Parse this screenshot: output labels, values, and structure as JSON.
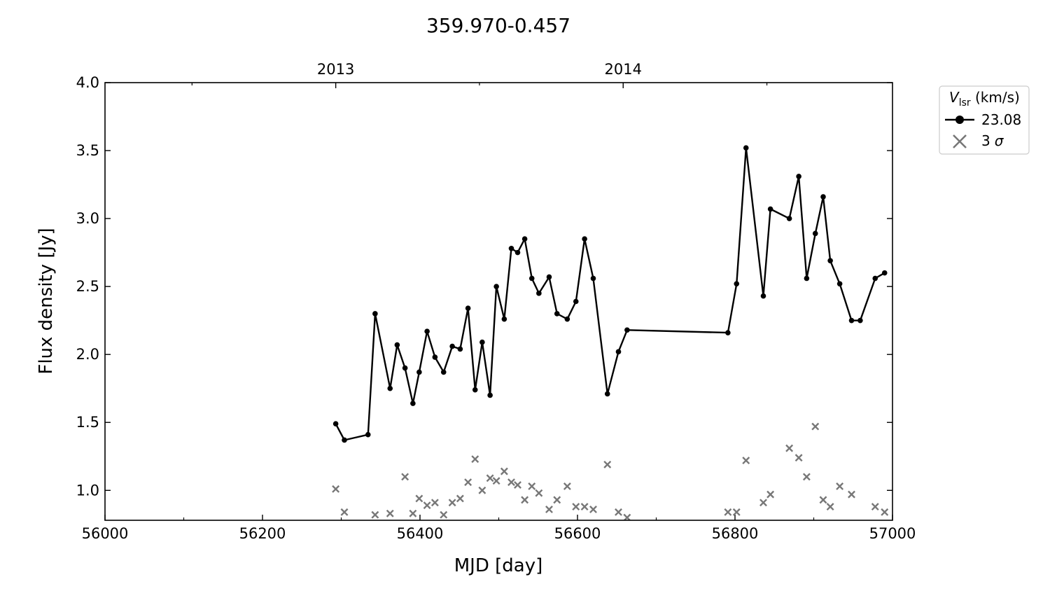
{
  "chart_data": {
    "type": "line",
    "title": "359.970-0.457",
    "xlabel": "MJD [day]",
    "ylabel": "Flux density [Jy]",
    "xlim": [
      56000,
      57000
    ],
    "ylim": [
      0.78,
      4.0
    ],
    "x_ticks": [
      56000,
      56200,
      56400,
      56600,
      56800,
      57000
    ],
    "x_tick_labels": [
      "56000",
      "56200",
      "56400",
      "56600",
      "56800",
      "57000"
    ],
    "y_ticks": [
      1.0,
      1.5,
      2.0,
      2.5,
      3.0,
      3.5,
      4.0
    ],
    "y_tick_labels": [
      "1.0",
      "1.5",
      "2.0",
      "2.5",
      "3.0",
      "3.5",
      "4.0"
    ],
    "top_axis": {
      "ticks": [
        56293,
        56658
      ],
      "labels": [
        "2013",
        "2014"
      ]
    },
    "legend": {
      "title_main": "V",
      "title_sub": "lsr",
      "title_rest": " (km/s)",
      "position": "outside-upper-right"
    },
    "series": [
      {
        "name": "23.08",
        "style": "line-marker",
        "color": "#000000",
        "x": [
          56293,
          56304,
          56334,
          56343,
          56362,
          56371,
          56381,
          56391,
          56399,
          56409,
          56419,
          56430,
          56441,
          56451,
          56461,
          56470,
          56479,
          56489,
          56497,
          56507,
          56516,
          56524,
          56533,
          56542,
          56551,
          56564,
          56574,
          56587,
          56598,
          56609,
          56620,
          56638,
          56652,
          56663,
          56791,
          56802,
          56814,
          56836,
          56845,
          56869,
          56881,
          56891,
          56902,
          56912,
          56921,
          56933,
          56948,
          56959,
          56978,
          56990
        ],
        "y": [
          1.49,
          1.37,
          1.41,
          2.3,
          1.75,
          2.07,
          1.9,
          1.64,
          1.87,
          2.17,
          1.98,
          1.87,
          2.06,
          2.04,
          2.34,
          1.74,
          2.09,
          1.7,
          2.5,
          2.26,
          2.78,
          2.75,
          2.85,
          2.56,
          2.45,
          2.57,
          2.3,
          2.26,
          2.39,
          2.85,
          2.56,
          1.71,
          2.02,
          2.18,
          2.16,
          2.52,
          3.52,
          2.43,
          3.07,
          3.0,
          3.31,
          2.56,
          2.89,
          3.16,
          2.69,
          2.52,
          2.25,
          2.25,
          2.56,
          2.6
        ]
      },
      {
        "name": "3 σ",
        "name_num": "3",
        "name_sym": "σ",
        "style": "x-marker",
        "color": "#777777",
        "x": [
          56293,
          56304,
          56343,
          56362,
          56381,
          56391,
          56399,
          56409,
          56419,
          56430,
          56441,
          56451,
          56461,
          56470,
          56479,
          56489,
          56497,
          56507,
          56516,
          56524,
          56533,
          56542,
          56551,
          56564,
          56574,
          56587,
          56598,
          56609,
          56620,
          56638,
          56652,
          56663,
          56791,
          56802,
          56814,
          56836,
          56845,
          56869,
          56881,
          56891,
          56902,
          56912,
          56921,
          56933,
          56948,
          56978,
          56990
        ],
        "y": [
          1.01,
          0.84,
          0.82,
          0.83,
          1.1,
          0.83,
          0.94,
          0.89,
          0.91,
          0.82,
          0.91,
          0.94,
          1.06,
          1.23,
          1.0,
          1.09,
          1.07,
          1.14,
          1.06,
          1.04,
          0.93,
          1.03,
          0.98,
          0.86,
          0.93,
          1.03,
          0.88,
          0.88,
          0.86,
          1.19,
          0.84,
          0.8,
          0.84,
          0.84,
          1.22,
          0.91,
          0.97,
          1.31,
          1.24,
          1.1,
          1.47,
          0.93,
          0.88,
          1.03,
          0.97,
          0.88,
          0.84
        ]
      }
    ]
  }
}
